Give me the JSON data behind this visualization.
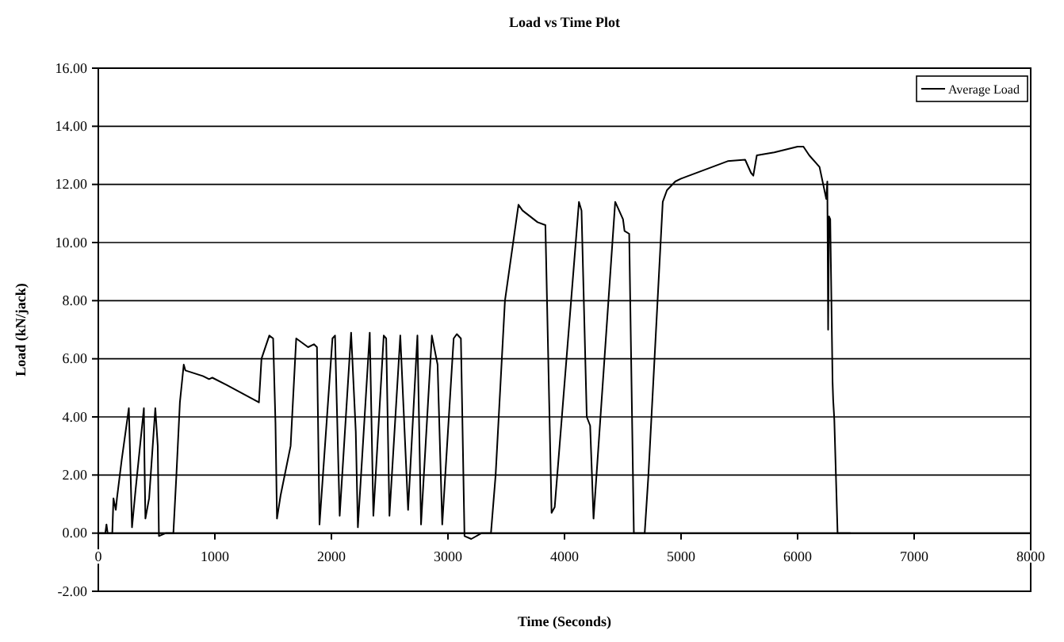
{
  "chart_data": {
    "type": "line",
    "title": "Load vs Time Plot",
    "xlabel": "Time (Seconds)",
    "ylabel": "Load (kN/jack)",
    "xlim": [
      0,
      8000
    ],
    "xticks": [
      0,
      1000,
      2000,
      3000,
      4000,
      5000,
      6000,
      7000,
      8000
    ],
    "ylim": [
      -2,
      16
    ],
    "yticks": [
      {
        "value": -2,
        "label": "-2.00"
      },
      {
        "value": 0,
        "label": "0.00"
      },
      {
        "value": 2,
        "label": "2.00"
      },
      {
        "value": 4,
        "label": "4.00"
      },
      {
        "value": 6,
        "label": "6.00"
      },
      {
        "value": 8,
        "label": "8.00"
      },
      {
        "value": 10,
        "label": "10.00"
      },
      {
        "value": 12,
        "label": "12.00"
      },
      {
        "value": 14,
        "label": "14.00"
      },
      {
        "value": 16,
        "label": "16.00"
      }
    ],
    "grid": "y",
    "legend": "top right",
    "marker": "none",
    "line_style": "solid",
    "series": [
      {
        "name": "Average Load",
        "color": "#000000",
        "x": [
          0,
          60,
          70,
          80,
          120,
          130,
          150,
          160,
          200,
          262,
          270,
          289,
          320,
          391,
          396,
          404,
          436,
          489,
          510,
          520,
          580,
          644,
          670,
          700,
          733,
          747,
          900,
          950,
          978,
          1100,
          1378,
          1390,
          1400,
          1467,
          1500,
          1520,
          1533,
          1564,
          1650,
          1698,
          1800,
          1850,
          1876,
          1898,
          2009,
          2031,
          2071,
          2169,
          2209,
          2227,
          2329,
          2360,
          2449,
          2470,
          2498,
          2591,
          2658,
          2738,
          2769,
          2862,
          2911,
          2951,
          3049,
          3076,
          3111,
          3142,
          3200,
          3289,
          3369,
          3409,
          3489,
          3605,
          3640,
          3769,
          3836,
          3889,
          3916,
          4124,
          4146,
          4191,
          4220,
          4249,
          4435,
          4502,
          4515,
          4555,
          4595,
          4688,
          4720,
          4843,
          4879,
          4950,
          5000,
          5200,
          5400,
          5550,
          5600,
          5620,
          5650,
          5800,
          6000,
          6050,
          6100,
          6188,
          6246,
          6255,
          6262,
          6270,
          6280,
          6300,
          6305,
          6315,
          6343,
          6454
        ],
        "values": [
          0,
          0,
          0.3,
          0,
          0,
          1.2,
          0.8,
          1.2,
          2.5,
          4.3,
          3.1,
          0.2,
          1.5,
          4.3,
          2.5,
          0.5,
          1.2,
          4.3,
          3,
          -0.1,
          0,
          0,
          2,
          4.5,
          5.8,
          5.6,
          5.4,
          5.3,
          5.35,
          5.1,
          4.5,
          5.3,
          6,
          6.8,
          6.7,
          3.8,
          0.5,
          1.3,
          3,
          6.7,
          6.4,
          6.5,
          6.4,
          0.3,
          6.7,
          6.8,
          0.6,
          6.9,
          3.5,
          0.2,
          6.9,
          0.6,
          6.8,
          6.7,
          0.6,
          6.8,
          0.8,
          6.8,
          0.3,
          6.8,
          5.8,
          0.3,
          6.7,
          6.85,
          6.7,
          -0.1,
          -0.2,
          0,
          0,
          2,
          8,
          11.3,
          11.1,
          10.7,
          10.6,
          0.7,
          0.9,
          11.4,
          11.1,
          4,
          3.7,
          0.5,
          11.4,
          10.8,
          10.4,
          10.3,
          0,
          0,
          2,
          11.4,
          11.8,
          12.1,
          12.2,
          12.5,
          12.8,
          12.85,
          12.4,
          12.3,
          13,
          13.1,
          13.3,
          13.3,
          13,
          12.6,
          11.5,
          12.1,
          7,
          10.9,
          10.8,
          5.2,
          4.6,
          3.9,
          0,
          0
        ]
      }
    ]
  }
}
